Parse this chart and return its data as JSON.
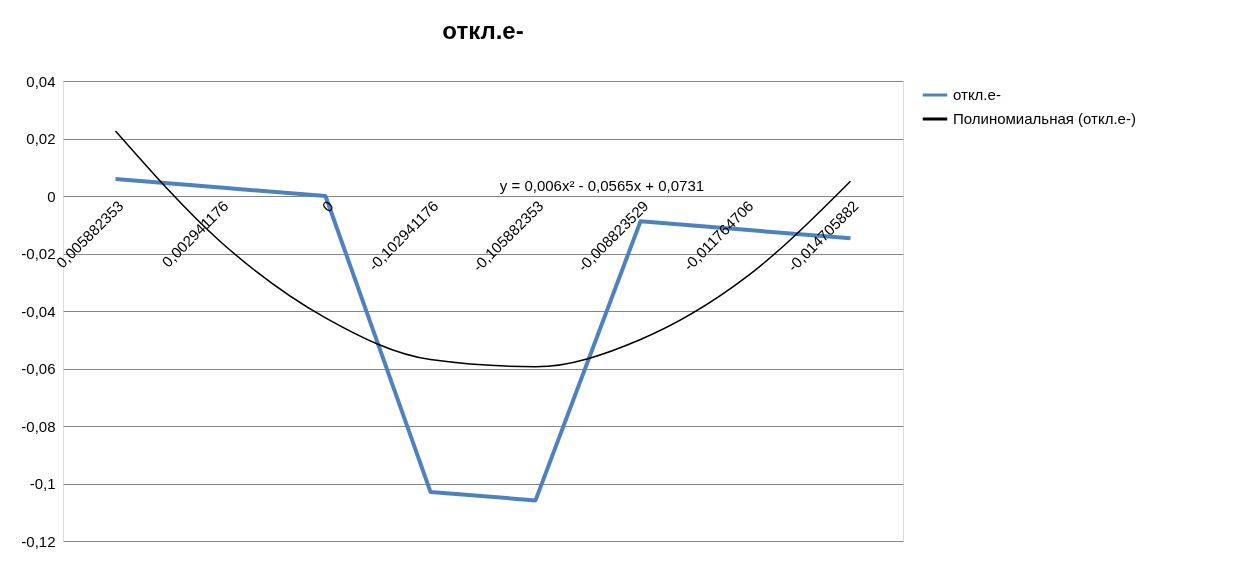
{
  "chart_data": {
    "type": "line",
    "title": "откл.е-",
    "categories": [
      "0,005882353",
      "0,002941176",
      "0",
      "-0,102941176",
      "-0,105882353",
      "-0,008823529",
      "-0,011764706",
      "-0,014705882"
    ],
    "series": [
      {
        "name": "откл.е-",
        "color": "#4f81bd",
        "values": [
          0.005882353,
          0.002941176,
          0,
          -0.102941176,
          -0.105882353,
          -0.008823529,
          -0.011764706,
          -0.014705882
        ]
      },
      {
        "name": "Полиномиальная (откл.е-)",
        "type": "line",
        "color": "#000000",
        "values": [
          0.0226,
          -0.0159,
          -0.0424,
          -0.0569,
          -0.0594,
          -0.0499,
          -0.0284,
          0.0051
        ]
      }
    ],
    "ylim": [
      -0.12,
      0.04
    ],
    "yticks": [
      {
        "value": -0.12,
        "label": "-0,12"
      },
      {
        "value": -0.1,
        "label": "-0,1"
      },
      {
        "value": -0.08,
        "label": "-0,08"
      },
      {
        "value": -0.06,
        "label": "-0,06"
      },
      {
        "value": -0.04,
        "label": "-0,04"
      },
      {
        "value": -0.02,
        "label": "-0,02"
      },
      0,
      {
        "value": 0.02,
        "label": "0,02"
      },
      {
        "value": 0.04,
        "label": "0,04"
      }
    ],
    "grid": "y",
    "legend": "right",
    "marker": "none",
    "line_style": "solid",
    "annotations": [
      "y = 0,006x² - 0,0565x + 0,0731"
    ]
  }
}
